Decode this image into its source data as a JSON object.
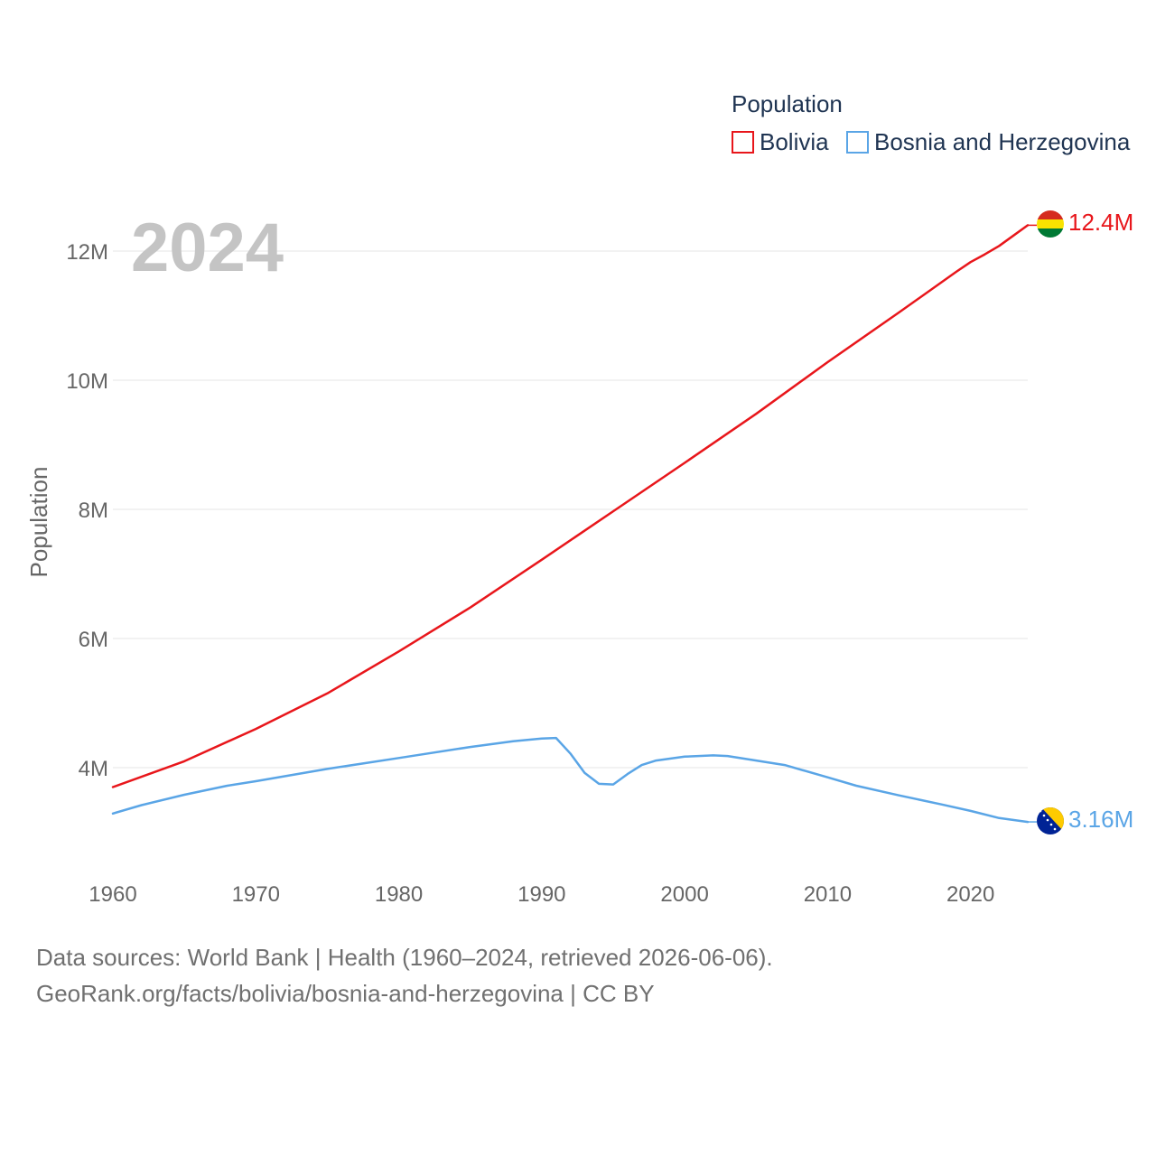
{
  "chart_data": {
    "type": "line",
    "title": "Population",
    "year_label": "2024",
    "ylabel": "Population",
    "xlabel": "",
    "xlim": [
      1960,
      2024
    ],
    "ylim": [
      2800000,
      13000000
    ],
    "x_ticks": [
      1960,
      1970,
      1980,
      1990,
      2000,
      2010,
      2020
    ],
    "y_ticks": [
      {
        "value": 4000000,
        "label": "4M"
      },
      {
        "value": 6000000,
        "label": "6M"
      },
      {
        "value": 8000000,
        "label": "8M"
      },
      {
        "value": 10000000,
        "label": "10M"
      },
      {
        "value": 12000000,
        "label": "12M"
      }
    ],
    "grid": true,
    "legend_position": "top-right",
    "series": [
      {
        "name": "Bolivia",
        "color": "#e8161b",
        "end_label": "12.4M",
        "flag": "bolivia-flag-icon",
        "x": [
          1960,
          1965,
          1970,
          1975,
          1980,
          1985,
          1990,
          1995,
          2000,
          2005,
          2010,
          2015,
          2019,
          2020,
          2021,
          2022,
          2023,
          2024
        ],
        "values": [
          3700000,
          4100000,
          4600000,
          5150000,
          5800000,
          6480000,
          7220000,
          7970000,
          8720000,
          9480000,
          10280000,
          11050000,
          11680000,
          11830000,
          11950000,
          12080000,
          12240000,
          12400000
        ]
      },
      {
        "name": "Bosnia and Herzegovina",
        "color": "#5aa5e6",
        "end_label": "3.16M",
        "flag": "bosnia-flag-icon",
        "x": [
          1960,
          1962,
          1965,
          1968,
          1970,
          1975,
          1980,
          1985,
          1988,
          1990,
          1991,
          1992,
          1993,
          1994,
          1995,
          1996,
          1997,
          1998,
          2000,
          2002,
          2003,
          2005,
          2007,
          2010,
          2012,
          2015,
          2018,
          2020,
          2022,
          2024
        ],
        "values": [
          3290000,
          3420000,
          3580000,
          3720000,
          3790000,
          3980000,
          4150000,
          4320000,
          4410000,
          4450000,
          4460000,
          4220000,
          3920000,
          3750000,
          3740000,
          3900000,
          4040000,
          4110000,
          4170000,
          4190000,
          4180000,
          4110000,
          4040000,
          3850000,
          3720000,
          3570000,
          3430000,
          3330000,
          3220000,
          3160000
        ]
      }
    ]
  },
  "footer": {
    "sources": "Data sources: World Bank | Health (1960–2024, retrieved 2026-06-06).",
    "link": "GeoRank.org/facts/bolivia/bosnia-and-herzegovina | CC BY"
  }
}
